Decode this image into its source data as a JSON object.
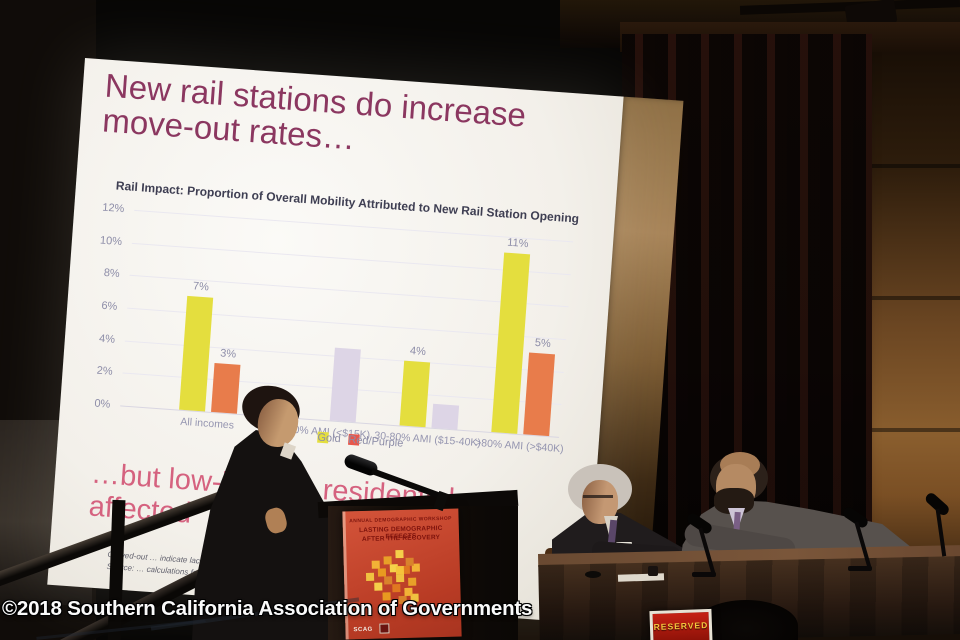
{
  "scene": {
    "watermark": "©2018 Southern California Association of Governments",
    "reserved_sign": "RESERVED"
  },
  "slide": {
    "title_line1": "New rail stations do increase",
    "title_line2": "move-out rates…",
    "chart_heading": "Rail Impact: Proportion of Overall Mobility Attributed to New Rail Station Opening",
    "pink_line1": "…but low-income residents less",
    "pink_line2": "affected",
    "footnote_line1": "Grayed-out … indicate lack of …",
    "footnote_line2": "Source: … calculations from Ca…"
  },
  "podium_sign": {
    "top_line": "ANNUAL DEMOGRAPHIC WORKSHOP",
    "line1": "LASTING DEMOGRAPHIC EFFECTS",
    "line2": "AFTER THE RECOVERY",
    "logo": "SCAG"
  },
  "chart_data": {
    "type": "bar",
    "title": "Rail Impact: Proportion of Overall Mobility Attributed to New Rail Station Opening",
    "categories": [
      "All incomes",
      "<30% AMI (<$15K)",
      "30-80% AMI ($15-40K)",
      ">80% AMI (>$40K)"
    ],
    "series": [
      {
        "name": "Gold",
        "color": "#e4de3e",
        "values": [
          7,
          null,
          4,
          11
        ],
        "labels": [
          "7%",
          "",
          "4%",
          "11%"
        ],
        "grayed": [
          false,
          false,
          false,
          false
        ]
      },
      {
        "name": "Red/Purple",
        "color": "#e87c4b",
        "values": [
          3,
          4.5,
          1.5,
          5
        ],
        "labels": [
          "3%",
          "",
          "",
          "5%"
        ],
        "grayed": [
          false,
          true,
          true,
          false
        ]
      }
    ],
    "grayed_color": "#ddd5e6",
    "ylim": [
      0,
      12
    ],
    "y_ticks": [
      "12%",
      "10%",
      "8%",
      "6%",
      "4%",
      "2%",
      "0%"
    ],
    "grid": true,
    "legend_position": "bottom",
    "legend": [
      {
        "label": "Gold",
        "color": "#e4de3e"
      },
      {
        "label": "Red/Purple",
        "color": "#e8564b"
      }
    ]
  }
}
